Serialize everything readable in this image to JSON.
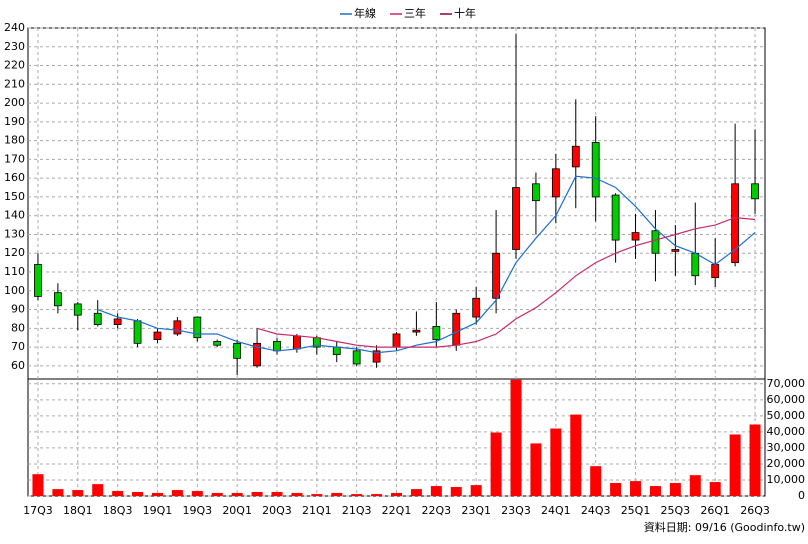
{
  "chart_data": {
    "type": "candlestick",
    "categories": [
      "17Q3",
      null,
      "18Q1",
      null,
      "18Q3",
      null,
      "19Q1",
      null,
      "19Q3",
      null,
      "20Q1",
      null,
      "20Q3",
      null,
      "21Q1",
      null,
      "21Q3",
      null,
      "22Q1",
      null,
      "22Q3",
      null,
      "23Q1",
      null,
      "23Q3",
      null,
      "24Q1",
      null,
      "24Q3",
      null,
      "25Q1",
      null,
      "25Q3",
      null,
      "26Q1",
      null,
      "26Q3"
    ],
    "candles": {
      "open": [
        114,
        99,
        93,
        88,
        82,
        84,
        74,
        77,
        86,
        73,
        72,
        60,
        73,
        69,
        75,
        70,
        68,
        62,
        70,
        78,
        81,
        71,
        86,
        96,
        122,
        157,
        150,
        166,
        179,
        151,
        127,
        132,
        121,
        120,
        107,
        115,
        157
      ],
      "high": [
        120,
        104,
        94,
        95,
        88,
        85,
        80,
        86,
        86,
        74,
        74,
        80,
        75,
        77,
        76,
        73,
        70,
        71,
        78,
        89,
        94,
        90,
        102,
        143,
        237,
        163,
        173,
        202,
        193,
        152,
        141,
        143,
        135,
        147,
        128,
        189,
        186
      ],
      "low": [
        95,
        88,
        79,
        81,
        80,
        70,
        72,
        76,
        73,
        70,
        55,
        59,
        66,
        67,
        66,
        62,
        60,
        59,
        68,
        76,
        70,
        68,
        82,
        88,
        117,
        130,
        136,
        144,
        137,
        115,
        117,
        105,
        108,
        103,
        102,
        113,
        141
      ],
      "close": [
        97,
        92,
        87,
        82,
        85,
        72,
        78,
        84,
        75,
        71,
        64,
        72,
        68,
        76,
        70,
        66,
        61,
        68,
        77,
        79,
        74,
        88,
        96,
        120,
        155,
        148,
        165,
        177,
        150,
        127,
        131,
        120,
        122,
        108,
        114,
        157,
        149
      ]
    },
    "up_color": "#ff0000",
    "down_color": "#00cc00",
    "series": [
      {
        "name": "年線",
        "color": "#1f6fd0",
        "values": [
          null,
          null,
          null,
          90,
          86,
          84,
          80,
          79,
          77,
          77,
          73,
          70,
          68,
          69,
          71,
          70,
          69,
          67,
          68,
          71,
          73,
          78,
          83,
          95,
          115,
          128,
          140,
          161,
          160,
          155,
          145,
          133,
          124,
          120,
          114,
          122,
          131
        ]
      },
      {
        "name": "三年",
        "color": "#c8286e",
        "values": [
          null,
          null,
          null,
          null,
          null,
          null,
          null,
          null,
          null,
          null,
          null,
          80,
          77,
          76,
          75,
          73,
          71,
          70,
          70,
          70,
          70,
          71,
          73,
          77,
          85,
          91,
          99,
          108,
          115,
          120,
          124,
          127,
          130,
          133,
          135,
          139,
          138
        ]
      },
      {
        "name": "十年",
        "color": "#8b0045",
        "values": [
          null,
          null,
          null,
          null,
          null,
          null,
          null,
          null,
          null,
          null,
          null,
          null,
          null,
          null,
          null,
          null,
          null,
          null,
          null,
          null,
          null,
          null,
          null,
          null,
          null,
          null,
          null,
          null,
          null,
          null,
          null,
          null,
          null,
          null,
          null,
          null,
          null
        ]
      }
    ],
    "volume": {
      "color": "#ff0000",
      "axis": "y2",
      "values": [
        13600,
        4300,
        3700,
        7400,
        3100,
        2500,
        1900,
        3700,
        3100,
        1900,
        1900,
        2500,
        2500,
        1900,
        1200,
        1900,
        1200,
        1200,
        1900,
        4300,
        6200,
        5600,
        6800,
        39600,
        72500,
        32800,
        42100,
        50800,
        18600,
        8100,
        9300,
        6200,
        8100,
        13000,
        8700,
        38400,
        44600
      ]
    },
    "ylim": [
      53,
      240
    ],
    "yticks": [
      60,
      70,
      80,
      90,
      100,
      110,
      120,
      130,
      140,
      150,
      160,
      170,
      180,
      190,
      200,
      210,
      220,
      230,
      240
    ],
    "y2lim": [
      0,
      73000
    ],
    "y2ticks": [
      0,
      {
        "value": 10000,
        "label": "10,000"
      },
      {
        "value": 20000,
        "label": "20,000"
      },
      {
        "value": 30000,
        "label": "30,000"
      },
      {
        "value": 40000,
        "label": "40,000"
      },
      {
        "value": 50000,
        "label": "50,000"
      },
      {
        "value": 60000,
        "label": "60,000"
      },
      {
        "value": 70000,
        "label": "70,000"
      }
    ],
    "grid": true,
    "legend": "top",
    "source": "資料日期: 09/16 (Goodinfo.tw)"
  }
}
